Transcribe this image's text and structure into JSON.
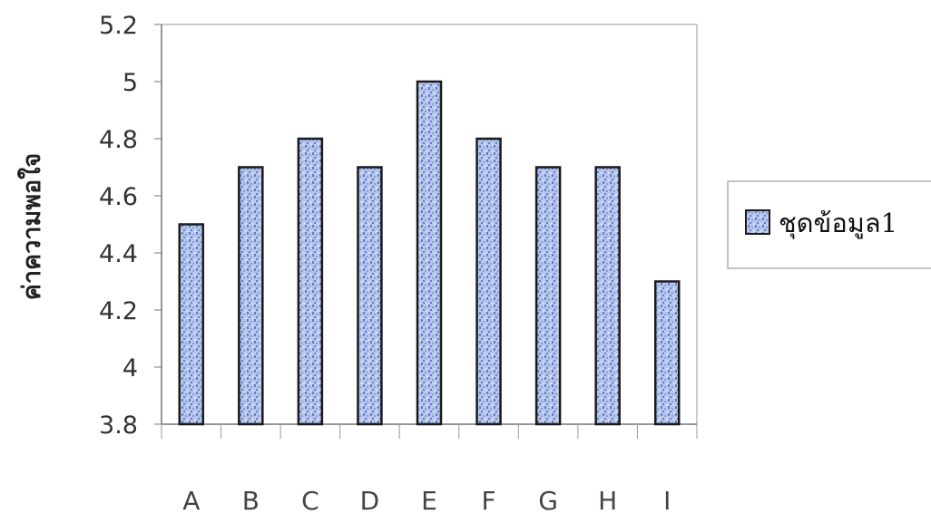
{
  "chart_data": {
    "type": "bar",
    "categories": [
      "A",
      "B",
      "C",
      "D",
      "E",
      "F",
      "G",
      "H",
      "I"
    ],
    "series": [
      {
        "name": "ชุดข้อมูล1",
        "values": [
          4.5,
          4.7,
          4.8,
          4.7,
          5.0,
          4.8,
          4.7,
          4.7,
          4.3
        ]
      }
    ],
    "title": "",
    "xlabel": "",
    "ylabel": "ค่าความพอใจ",
    "ylim": [
      3.8,
      5.2
    ],
    "yticks": [
      "5.2",
      "5",
      "4.8",
      "4.6",
      "4.4",
      "4.2",
      "4",
      "3.8"
    ],
    "grid": false,
    "legend_position": "right",
    "colors": {
      "bar_fill": "#b8c6ec",
      "bar_pattern": "#5f7fc8",
      "bar_edge": "#1a1a1a",
      "plot_border": "#9a9a9a"
    }
  }
}
